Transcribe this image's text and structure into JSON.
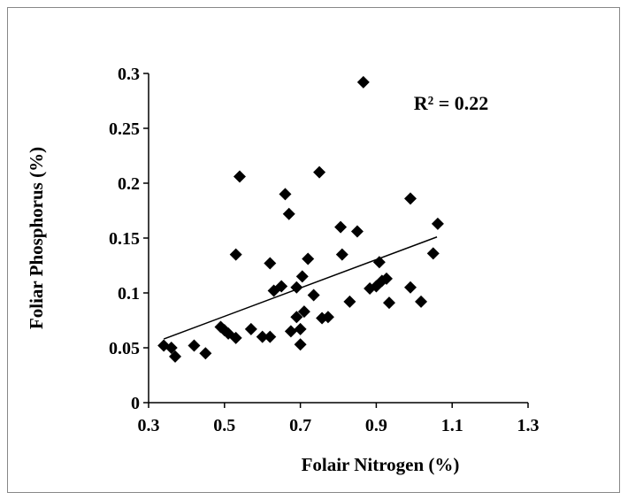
{
  "chart_data": {
    "type": "scatter",
    "xlabel": "Folair Nitrogen (%)",
    "ylabel": "Foliar Phosphorus (%)",
    "annotation": "R² = 0.22",
    "color": "#000000",
    "xlim": [
      0.3,
      1.3
    ],
    "ylim": [
      0,
      0.3
    ],
    "xticks": [
      0.3,
      0.5,
      0.7,
      0.9,
      1.1,
      1.3
    ],
    "yticks": [
      0,
      0.05,
      0.1,
      0.15,
      0.2,
      0.25,
      0.3
    ],
    "grid": false,
    "x": [
      0.34,
      0.36,
      0.37,
      0.42,
      0.45,
      0.49,
      0.5,
      0.51,
      0.53,
      0.53,
      0.54,
      0.57,
      0.6,
      0.62,
      0.62,
      0.63,
      0.65,
      0.66,
      0.67,
      0.675,
      0.69,
      0.69,
      0.7,
      0.7,
      0.705,
      0.71,
      0.72,
      0.735,
      0.75,
      0.757,
      0.773,
      0.806,
      0.81,
      0.83,
      0.85,
      0.866,
      0.883,
      0.9,
      0.908,
      0.915,
      0.927,
      0.934,
      0.99,
      0.99,
      1.018,
      1.05,
      1.062
    ],
    "values": [
      0.052,
      0.05,
      0.042,
      0.052,
      0.045,
      0.069,
      0.066,
      0.063,
      0.059,
      0.135,
      0.206,
      0.067,
      0.06,
      0.06,
      0.127,
      0.102,
      0.106,
      0.19,
      0.172,
      0.065,
      0.078,
      0.105,
      0.053,
      0.067,
      0.115,
      0.083,
      0.131,
      0.098,
      0.21,
      0.077,
      0.078,
      0.16,
      0.135,
      0.092,
      0.156,
      0.292,
      0.104,
      0.106,
      0.128,
      0.111,
      0.113,
      0.091,
      0.105,
      0.186,
      0.092,
      0.136,
      0.163
    ],
    "trendline": {
      "x": [
        0.34,
        1.06
      ],
      "y": [
        0.058,
        0.151
      ]
    }
  }
}
